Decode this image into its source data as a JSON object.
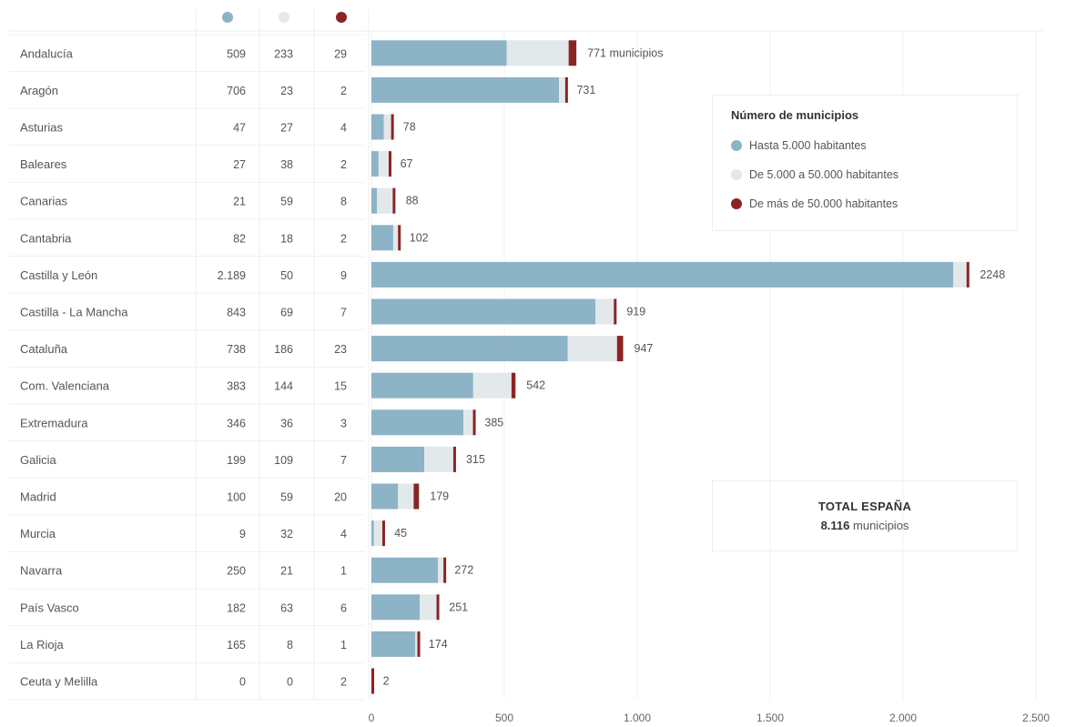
{
  "chart_data": {
    "type": "bar",
    "stacked": true,
    "orientation": "horizontal",
    "categories": [
      "Andalucía",
      "Aragón",
      "Asturias",
      "Baleares",
      "Canarias",
      "Cantabria",
      "Castilla y León",
      "Castilla - La Mancha",
      "Cataluña",
      "Com. Valenciana",
      "Extremadura",
      "Galicia",
      "Madrid",
      "Murcia",
      "Navarra",
      "País Vasco",
      "La Rioja",
      "Ceuta y Melilla"
    ],
    "series": [
      {
        "name": "Hasta 5.000 habitantes",
        "color": "#8db3c7",
        "values": [
          509,
          706,
          47,
          27,
          21,
          82,
          2189,
          843,
          738,
          383,
          346,
          199,
          100,
          9,
          250,
          182,
          165,
          0
        ],
        "labels": [
          "509",
          "706",
          "47",
          "27",
          "21",
          "82",
          "2.189",
          "843",
          "738",
          "383",
          "346",
          "199",
          "100",
          "9",
          "250",
          "182",
          "165",
          "0"
        ]
      },
      {
        "name": "De 5.000 a 50.000 habitantes",
        "color": "#e3e8eb",
        "values": [
          233,
          23,
          27,
          38,
          59,
          18,
          50,
          69,
          186,
          144,
          36,
          109,
          59,
          32,
          21,
          63,
          8,
          0
        ],
        "labels": [
          "233",
          "23",
          "27",
          "38",
          "59",
          "18",
          "50",
          "69",
          "186",
          "144",
          "36",
          "109",
          "59",
          "32",
          "21",
          "63",
          "8",
          "0"
        ]
      },
      {
        "name": "De más de 50.000 habitantes",
        "color": "#8b2323",
        "values": [
          29,
          2,
          4,
          2,
          8,
          2,
          9,
          7,
          23,
          15,
          3,
          7,
          20,
          4,
          1,
          6,
          1,
          2
        ],
        "labels": [
          "29",
          "2",
          "4",
          "2",
          "8",
          "2",
          "9",
          "7",
          "23",
          "15",
          "3",
          "7",
          "20",
          "4",
          "1",
          "6",
          "1",
          "2"
        ]
      }
    ],
    "totals": [
      771,
      731,
      78,
      67,
      88,
      102,
      2248,
      919,
      947,
      542,
      385,
      315,
      179,
      45,
      272,
      251,
      174,
      2
    ],
    "total_labels": [
      "771 municipios",
      "731",
      "78",
      "67",
      "88",
      "102",
      "2248",
      "919",
      "947",
      "542",
      "385",
      "315",
      "179",
      "45",
      "272",
      "251",
      "174",
      "2"
    ],
    "xlim": [
      0,
      2500
    ],
    "xticks": [
      0,
      500,
      1000,
      1500,
      2000,
      2500
    ],
    "xtick_labels": [
      "0",
      "500",
      "1.000",
      "1.500",
      "2.000",
      "2.500"
    ],
    "grid": true,
    "legend_position": "top-right"
  },
  "legend": {
    "title": "Número de municipios",
    "items": [
      {
        "label": "Hasta 5.000 habitantes",
        "color": "#8db3c7"
      },
      {
        "label": "De 5.000 a 50.000 habitantes",
        "color": "#e3e8eb"
      },
      {
        "label": "De más de 50.000 habitantes",
        "color": "#8b2323"
      }
    ]
  },
  "total": {
    "title": "TOTAL ESPAÑA",
    "value": "8.116",
    "unit": "municipios"
  }
}
